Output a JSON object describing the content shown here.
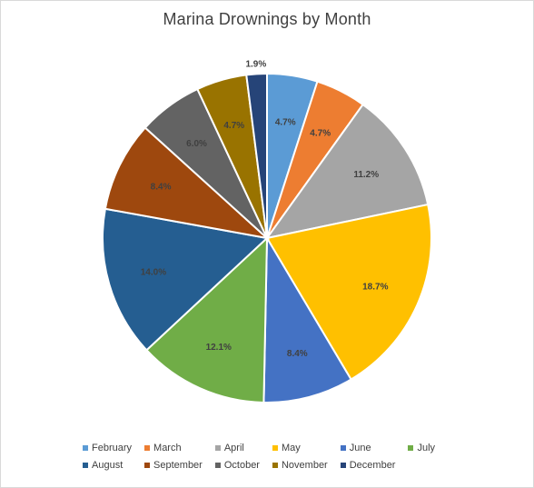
{
  "chart_data": {
    "type": "pie",
    "title": "Marina Drownings by Month",
    "categories": [
      "February",
      "March",
      "April",
      "May",
      "June",
      "July",
      "August",
      "September",
      "October",
      "November",
      "December"
    ],
    "values": [
      4.7,
      4.7,
      11.2,
      18.7,
      8.4,
      12.1,
      14.0,
      8.4,
      6.0,
      4.7,
      1.9
    ],
    "labels": [
      "4.7%",
      "4.7%",
      "11.2%",
      "18.7%",
      "8.4%",
      "12.1%",
      "14.0%",
      "8.4%",
      "6.0%",
      "4.7%",
      "1.9%"
    ],
    "colors": [
      "#5b9bd5",
      "#ed7d31",
      "#a5a5a5",
      "#ffc000",
      "#4472c4",
      "#70ad47",
      "#255e91",
      "#9e480e",
      "#636363",
      "#997300",
      "#264478"
    ],
    "legend_position": "bottom"
  }
}
